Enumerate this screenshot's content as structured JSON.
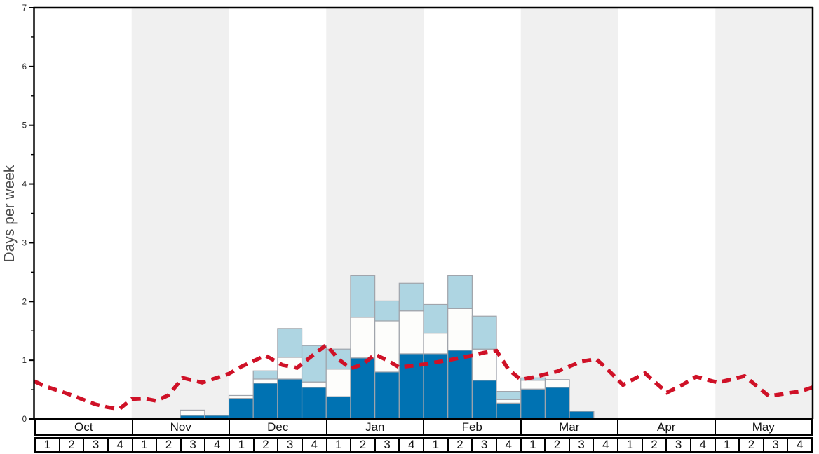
{
  "chart_data": {
    "type": "bar",
    "title": "",
    "ylabel": "Days per week",
    "ylim": [
      0,
      7
    ],
    "y_major_ticks": [
      0,
      1,
      2,
      3,
      4,
      5,
      6,
      7
    ],
    "y_minor_interval": 0.5,
    "grid": "off",
    "legend": "none",
    "x_months": [
      "Oct",
      "Nov",
      "Dec",
      "Jan",
      "Feb",
      "Mar",
      "Apr",
      "May"
    ],
    "x_weeks_per_month": [
      "1",
      "2",
      "3",
      "4"
    ],
    "stack_series": [
      {
        "name": "dark-blue-days",
        "color": "#0072b2",
        "values": [
          0,
          0,
          0,
          0,
          0,
          0,
          0.06,
          0.06,
          0.35,
          0.61,
          0.68,
          0.54,
          0.38,
          1.04,
          0.8,
          1.11,
          1.11,
          1.17,
          0.66,
          0.27,
          0.51,
          0.54,
          0.13,
          0,
          0,
          0,
          0,
          0,
          0,
          0,
          0,
          0
        ]
      },
      {
        "name": "white-days",
        "color": "#fdfdfb",
        "values": [
          0,
          0,
          0,
          0,
          0,
          0,
          0.09,
          0,
          0.05,
          0.07,
          0.37,
          0.09,
          0.47,
          0.69,
          0.87,
          0.73,
          0.35,
          0.71,
          0.53,
          0.06,
          0.15,
          0.13,
          0,
          0,
          0,
          0,
          0,
          0,
          0,
          0,
          0,
          0
        ]
      },
      {
        "name": "light-blue-days",
        "color": "#aed5e2",
        "values": [
          0,
          0,
          0,
          0,
          0,
          0,
          0,
          0,
          0,
          0.14,
          0.49,
          0.62,
          0.34,
          0.71,
          0.34,
          0.47,
          0.49,
          0.56,
          0.56,
          0.14,
          0.04,
          0,
          0,
          0,
          0,
          0,
          0,
          0,
          0,
          0,
          0,
          0
        ]
      }
    ],
    "line_series": {
      "name": "red-dashed-average-line",
      "color": "#cf1127",
      "style": "dashed",
      "points_week_value": [
        [
          0,
          0.64
        ],
        [
          0.5,
          0.55
        ],
        [
          1,
          0.48
        ],
        [
          1.5,
          0.41
        ],
        [
          2,
          0.33
        ],
        [
          2.5,
          0.25
        ],
        [
          3,
          0.2
        ],
        [
          3.5,
          0.17
        ],
        [
          4,
          0.34
        ],
        [
          4.5,
          0.35
        ],
        [
          5,
          0.31
        ],
        [
          5.5,
          0.4
        ],
        [
          6.1,
          0.7
        ],
        [
          6.5,
          0.66
        ],
        [
          6.9,
          0.62
        ],
        [
          7.5,
          0.7
        ],
        [
          8,
          0.77
        ],
        [
          8.5,
          0.89
        ],
        [
          9.5,
          1.08
        ],
        [
          10.2,
          0.92
        ],
        [
          10.8,
          0.87
        ],
        [
          11.4,
          1.07
        ],
        [
          12,
          1.26
        ],
        [
          12.5,
          1.02
        ],
        [
          13,
          0.86
        ],
        [
          13.5,
          0.93
        ],
        [
          14,
          1.1
        ],
        [
          14.5,
          1.0
        ],
        [
          15,
          0.88
        ],
        [
          16,
          0.93
        ],
        [
          17,
          1.0
        ],
        [
          18,
          1.08
        ],
        [
          18.5,
          1.13
        ],
        [
          19,
          1.16
        ],
        [
          19.5,
          0.84
        ],
        [
          20,
          0.67
        ],
        [
          20.5,
          0.71
        ],
        [
          21.5,
          0.81
        ],
        [
          22.5,
          0.98
        ],
        [
          23.1,
          1.02
        ],
        [
          23.5,
          0.87
        ],
        [
          24.2,
          0.58
        ],
        [
          25.1,
          0.78
        ],
        [
          26,
          0.45
        ],
        [
          26.6,
          0.57
        ],
        [
          27.2,
          0.72
        ],
        [
          28.1,
          0.62
        ],
        [
          29.2,
          0.73
        ],
        [
          30.2,
          0.39
        ],
        [
          31,
          0.44
        ],
        [
          31.5,
          0.47
        ],
        [
          32,
          0.54
        ]
      ]
    }
  },
  "colors": {
    "background": "#ffffff",
    "month_band_shaded": "#f0f0f0",
    "bar_border": "#a0a4ab",
    "frame": "#000000",
    "tick_label": "#222222",
    "axis_label": "#4d4d4d"
  }
}
